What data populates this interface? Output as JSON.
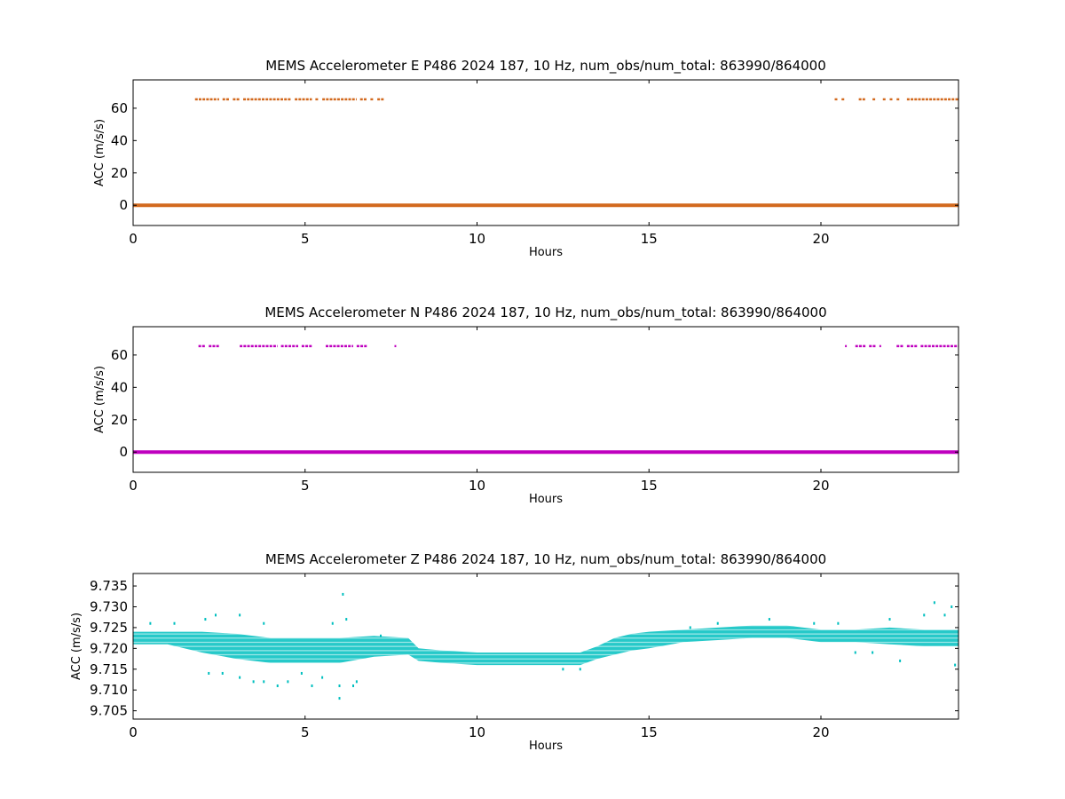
{
  "chart_data": [
    {
      "type": "scatter",
      "title": "MEMS Accelerometer E P486 2024 187, 10 Hz, num_obs/num_total: 863990/864000",
      "xlabel": "Hours",
      "ylabel": "ACC (m/s/s)",
      "xlim": [
        0,
        24
      ],
      "ylim": [
        -12.5,
        77.5
      ],
      "xticks": [
        0,
        5,
        10,
        15,
        20
      ],
      "yticks": [
        0,
        20,
        40,
        60
      ],
      "grid": false,
      "color": "#d2691e",
      "baseline": {
        "value": 0.0,
        "x": [
          0,
          24
        ]
      },
      "outlier_level": 65.5,
      "outlier_segments": [
        [
          1.8,
          2.5
        ],
        [
          2.6,
          2.8
        ],
        [
          2.9,
          3.1
        ],
        [
          3.2,
          4.6
        ],
        [
          4.7,
          5.2
        ],
        [
          5.3,
          5.4
        ],
        [
          5.5,
          6.5
        ],
        [
          6.6,
          6.8
        ],
        [
          6.9,
          7.0
        ],
        [
          7.1,
          7.3
        ],
        [
          20.4,
          20.5
        ],
        [
          20.6,
          20.7
        ],
        [
          21.1,
          21.3
        ],
        [
          21.5,
          21.6
        ],
        [
          21.8,
          21.9
        ],
        [
          22.0,
          22.1
        ],
        [
          22.2,
          22.3
        ],
        [
          22.5,
          24.0
        ]
      ]
    },
    {
      "type": "scatter",
      "title": "MEMS Accelerometer N P486 2024 187, 10 Hz, num_obs/num_total: 863990/864000",
      "xlabel": "Hours",
      "ylabel": "ACC (m/s/s)",
      "xlim": [
        0,
        24
      ],
      "ylim": [
        -12.5,
        77.5
      ],
      "xticks": [
        0,
        5,
        10,
        15,
        20
      ],
      "yticks": [
        0,
        20,
        40,
        60
      ],
      "grid": false,
      "color": "#bf00bf",
      "baseline": {
        "value": 0.0,
        "x": [
          0,
          24
        ]
      },
      "outlier_level": 65.5,
      "outlier_segments": [
        [
          1.9,
          2.1
        ],
        [
          2.2,
          2.5
        ],
        [
          3.1,
          4.2
        ],
        [
          4.3,
          4.8
        ],
        [
          4.9,
          5.2
        ],
        [
          5.6,
          6.4
        ],
        [
          6.5,
          6.8
        ],
        [
          7.6,
          7.65
        ],
        [
          20.7,
          20.75
        ],
        [
          21.0,
          21.3
        ],
        [
          21.4,
          21.6
        ],
        [
          21.7,
          21.75
        ],
        [
          22.2,
          22.4
        ],
        [
          22.5,
          22.8
        ],
        [
          22.9,
          24.0
        ]
      ]
    },
    {
      "type": "scatter",
      "title": "MEMS Accelerometer Z P486 2024 187, 10 Hz, num_obs/num_total: 863990/864000",
      "xlabel": "Hours",
      "ylabel": "ACC (m/s/s)",
      "xlim": [
        0,
        24
      ],
      "ylim": [
        9.703,
        9.738
      ],
      "xticks": [
        0,
        5,
        10,
        15,
        20
      ],
      "yticks": [
        9.705,
        9.71,
        9.715,
        9.72,
        9.725,
        9.73,
        9.735
      ],
      "grid": false,
      "color": "#00bfbf",
      "band": {
        "x": [
          0,
          1,
          2,
          3,
          4,
          5,
          6,
          7,
          8,
          8.3,
          9,
          10,
          11,
          12,
          13,
          13.5,
          14,
          14.5,
          15,
          16,
          17,
          18,
          19,
          20,
          21,
          22,
          23,
          24
        ],
        "center": [
          9.7225,
          9.7225,
          9.7215,
          9.7205,
          9.7195,
          9.7195,
          9.7195,
          9.7205,
          9.7205,
          9.7185,
          9.718,
          9.7175,
          9.7175,
          9.7175,
          9.7175,
          9.719,
          9.7205,
          9.7215,
          9.722,
          9.723,
          9.7235,
          9.724,
          9.724,
          9.723,
          9.723,
          9.723,
          9.7225,
          9.7225
        ],
        "half_width": [
          0.0015,
          0.0015,
          0.0025,
          0.003,
          0.003,
          0.003,
          0.003,
          0.0025,
          0.002,
          0.0015,
          0.0015,
          0.0015,
          0.0015,
          0.0015,
          0.0015,
          0.0015,
          0.002,
          0.002,
          0.002,
          0.0015,
          0.0015,
          0.0015,
          0.0015,
          0.0015,
          0.0015,
          0.002,
          0.002,
          0.002
        ]
      },
      "outliers": [
        [
          0.5,
          9.726
        ],
        [
          1.2,
          9.726
        ],
        [
          2.1,
          9.727
        ],
        [
          2.4,
          9.728
        ],
        [
          2.2,
          9.714
        ],
        [
          2.6,
          9.714
        ],
        [
          3.1,
          9.728
        ],
        [
          3.1,
          9.713
        ],
        [
          3.5,
          9.712
        ],
        [
          3.8,
          9.726
        ],
        [
          3.8,
          9.712
        ],
        [
          4.2,
          9.711
        ],
        [
          4.5,
          9.712
        ],
        [
          4.9,
          9.714
        ],
        [
          5.2,
          9.711
        ],
        [
          5.5,
          9.713
        ],
        [
          5.8,
          9.726
        ],
        [
          6.0,
          9.711
        ],
        [
          6.0,
          9.708
        ],
        [
          6.1,
          9.733
        ],
        [
          6.2,
          9.727
        ],
        [
          6.4,
          9.711
        ],
        [
          6.5,
          9.712
        ],
        [
          7.2,
          9.723
        ],
        [
          12.5,
          9.715
        ],
        [
          13.0,
          9.715
        ],
        [
          16.2,
          9.725
        ],
        [
          17.0,
          9.726
        ],
        [
          18.5,
          9.727
        ],
        [
          19.8,
          9.726
        ],
        [
          20.5,
          9.726
        ],
        [
          21.0,
          9.719
        ],
        [
          21.5,
          9.719
        ],
        [
          22.0,
          9.727
        ],
        [
          22.3,
          9.717
        ],
        [
          23.0,
          9.728
        ],
        [
          23.3,
          9.731
        ],
        [
          23.6,
          9.728
        ],
        [
          23.8,
          9.73
        ],
        [
          23.9,
          9.716
        ]
      ]
    }
  ]
}
